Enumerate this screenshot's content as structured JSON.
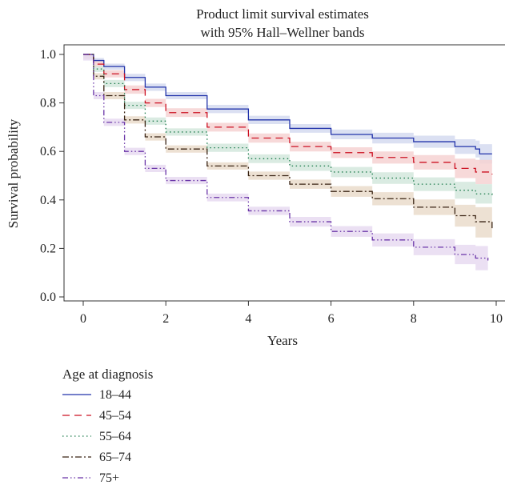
{
  "chart_data": {
    "type": "line",
    "title": [
      "Product limit survival estimates",
      "with 95% Hall–Wellner bands"
    ],
    "xlabel": "Years",
    "ylabel": "Survival probability",
    "xlim": [
      0,
      10
    ],
    "ylim": [
      0,
      1
    ],
    "xticks": [
      0,
      2,
      4,
      6,
      8,
      10
    ],
    "yticks": [
      0.0,
      0.2,
      0.4,
      0.6,
      0.8,
      1.0
    ],
    "ytick_labels": [
      "0.0",
      "0.2",
      "0.4",
      "0.6",
      "0.8",
      "1.0"
    ],
    "grid": false,
    "legend": {
      "title": "Age at diagnosis",
      "placement": "below"
    },
    "series": [
      {
        "name": "18–44",
        "color": "#2233aa",
        "band_color": "#d5daf0",
        "dash": "",
        "x": [
          0,
          0.25,
          0.5,
          1,
          1.5,
          2,
          3,
          4,
          5,
          6,
          7,
          8,
          9,
          9.5,
          9.6,
          9.9
        ],
        "y": [
          1.0,
          0.975,
          0.95,
          0.905,
          0.865,
          0.83,
          0.775,
          0.73,
          0.695,
          0.67,
          0.655,
          0.64,
          0.62,
          0.61,
          0.59,
          0.59
        ],
        "lower": [
          0.995,
          0.965,
          0.937,
          0.89,
          0.85,
          0.815,
          0.758,
          0.713,
          0.677,
          0.65,
          0.633,
          0.615,
          0.59,
          0.575,
          0.55,
          0.55
        ],
        "upper": [
          1.0,
          0.985,
          0.962,
          0.92,
          0.88,
          0.845,
          0.792,
          0.747,
          0.713,
          0.69,
          0.677,
          0.665,
          0.65,
          0.645,
          0.63,
          0.63
        ]
      },
      {
        "name": "45–54",
        "color": "#cc1122",
        "band_color": "#f6d2d2",
        "dash": "9,6",
        "x": [
          0,
          0.25,
          0.5,
          1,
          1.5,
          2,
          3,
          4,
          5,
          6,
          7,
          8,
          9,
          9.5,
          9.9
        ],
        "y": [
          1.0,
          0.96,
          0.92,
          0.855,
          0.8,
          0.76,
          0.7,
          0.655,
          0.62,
          0.595,
          0.575,
          0.555,
          0.53,
          0.515,
          0.505
        ],
        "lower": [
          0.99,
          0.948,
          0.905,
          0.838,
          0.783,
          0.742,
          0.682,
          0.636,
          0.6,
          0.573,
          0.55,
          0.525,
          0.49,
          0.465,
          0.45
        ],
        "upper": [
          1.0,
          0.972,
          0.935,
          0.872,
          0.817,
          0.778,
          0.718,
          0.674,
          0.64,
          0.617,
          0.6,
          0.585,
          0.57,
          0.565,
          0.56
        ]
      },
      {
        "name": "55–64",
        "color": "#1a7a4a",
        "band_color": "#d3e8dd",
        "dash": "1.5,3.5",
        "x": [
          0,
          0.25,
          0.5,
          1,
          1.5,
          2,
          3,
          4,
          5,
          6,
          7,
          8,
          9,
          9.5,
          9.9
        ],
        "y": [
          1.0,
          0.94,
          0.88,
          0.79,
          0.725,
          0.68,
          0.615,
          0.57,
          0.54,
          0.515,
          0.49,
          0.465,
          0.44,
          0.425,
          0.41
        ],
        "lower": [
          0.985,
          0.928,
          0.865,
          0.775,
          0.71,
          0.665,
          0.598,
          0.552,
          0.52,
          0.494,
          0.466,
          0.437,
          0.405,
          0.385,
          0.36
        ],
        "upper": [
          1.0,
          0.952,
          0.895,
          0.805,
          0.74,
          0.695,
          0.632,
          0.588,
          0.56,
          0.536,
          0.514,
          0.493,
          0.475,
          0.465,
          0.46
        ]
      },
      {
        "name": "65–74",
        "color": "#3a2414",
        "band_color": "#eadccb",
        "dash": "8,3,2,3",
        "x": [
          0,
          0.25,
          0.5,
          1,
          1.5,
          2,
          3,
          4,
          5,
          6,
          7,
          8,
          9,
          9.5,
          9.9
        ],
        "y": [
          1.0,
          0.91,
          0.83,
          0.73,
          0.66,
          0.61,
          0.54,
          0.5,
          0.465,
          0.435,
          0.405,
          0.37,
          0.335,
          0.31,
          0.28
        ],
        "lower": [
          0.98,
          0.897,
          0.815,
          0.715,
          0.645,
          0.595,
          0.525,
          0.483,
          0.446,
          0.413,
          0.378,
          0.338,
          0.29,
          0.245,
          0.14
        ],
        "upper": [
          1.0,
          0.923,
          0.845,
          0.745,
          0.675,
          0.625,
          0.555,
          0.517,
          0.484,
          0.457,
          0.432,
          0.402,
          0.38,
          0.37,
          0.36
        ]
      },
      {
        "name": "75+",
        "color": "#6a35a8",
        "band_color": "#e7dbf1",
        "dash": "7,3,1.5,3,1.5,3",
        "x": [
          0,
          0.25,
          0.5,
          1,
          1.5,
          2,
          3,
          4,
          5,
          6,
          7,
          8,
          9,
          9.5,
          9.8
        ],
        "y": [
          1.0,
          0.83,
          0.72,
          0.6,
          0.53,
          0.48,
          0.41,
          0.355,
          0.31,
          0.27,
          0.235,
          0.205,
          0.175,
          0.16,
          0.15
        ],
        "lower": [
          0.975,
          0.815,
          0.705,
          0.585,
          0.515,
          0.465,
          0.394,
          0.338,
          0.29,
          0.248,
          0.208,
          0.172,
          0.135,
          0.11,
          0.09
        ],
        "upper": [
          1.0,
          0.845,
          0.735,
          0.615,
          0.545,
          0.495,
          0.426,
          0.372,
          0.33,
          0.292,
          0.262,
          0.238,
          0.215,
          0.21,
          0.21
        ]
      }
    ]
  }
}
